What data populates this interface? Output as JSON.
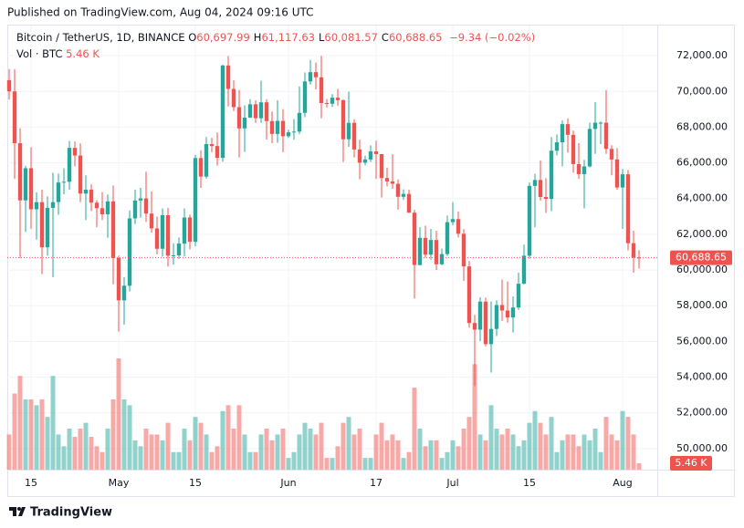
{
  "header": "Published on TradingView.com, Aug 04, 2024 09:16 UTC",
  "footer": "TradingView",
  "chart_data": {
    "type": "candlestick",
    "legend": {
      "symbol": "Bitcoin / TetherUS, 1D, BINANCE",
      "ohlc": [
        {
          "key": "O",
          "value": "60,697.99"
        },
        {
          "key": "H",
          "value": "61,117.63"
        },
        {
          "key": "L",
          "value": "60,081.57"
        },
        {
          "key": "C",
          "value": "60,688.65"
        }
      ],
      "change": "−9.34 (−0.02%)",
      "volume_name": "Vol · BTC",
      "volume_value": "5.46 K"
    },
    "last_price_label": "60,688.65",
    "last_volume_label": "5.46 K",
    "up_color": "#26a69a",
    "down_color": "#ef5350",
    "x": [
      "2024-04-11",
      "2024-04-12",
      "2024-04-13",
      "2024-04-14",
      "2024-04-15",
      "2024-04-16",
      "2024-04-17",
      "2024-04-18",
      "2024-04-19",
      "2024-04-20",
      "2024-04-21",
      "2024-04-22",
      "2024-04-23",
      "2024-04-24",
      "2024-04-25",
      "2024-04-26",
      "2024-04-27",
      "2024-04-28",
      "2024-04-29",
      "2024-04-30",
      "2024-05-01",
      "2024-05-02",
      "2024-05-03",
      "2024-05-04",
      "2024-05-05",
      "2024-05-06",
      "2024-05-07",
      "2024-05-08",
      "2024-05-09",
      "2024-05-10",
      "2024-05-11",
      "2024-05-12",
      "2024-05-13",
      "2024-05-14",
      "2024-05-15",
      "2024-05-16",
      "2024-05-17",
      "2024-05-18",
      "2024-05-19",
      "2024-05-20",
      "2024-05-21",
      "2024-05-22",
      "2024-05-23",
      "2024-05-24",
      "2024-05-25",
      "2024-05-26",
      "2024-05-27",
      "2024-05-28",
      "2024-05-29",
      "2024-05-30",
      "2024-05-31",
      "2024-06-01",
      "2024-06-02",
      "2024-06-03",
      "2024-06-04",
      "2024-06-05",
      "2024-06-06",
      "2024-06-07",
      "2024-06-08",
      "2024-06-09",
      "2024-06-10",
      "2024-06-11",
      "2024-06-12",
      "2024-06-13",
      "2024-06-14",
      "2024-06-15",
      "2024-06-16",
      "2024-06-17",
      "2024-06-18",
      "2024-06-19",
      "2024-06-20",
      "2024-06-21",
      "2024-06-22",
      "2024-06-23",
      "2024-06-24",
      "2024-06-25",
      "2024-06-26",
      "2024-06-27",
      "2024-06-28",
      "2024-06-29",
      "2024-06-30",
      "2024-07-01",
      "2024-07-02",
      "2024-07-03",
      "2024-07-04",
      "2024-07-05",
      "2024-07-06",
      "2024-07-07",
      "2024-07-08",
      "2024-07-09",
      "2024-07-10",
      "2024-07-11",
      "2024-07-12",
      "2024-07-13",
      "2024-07-14",
      "2024-07-15",
      "2024-07-16",
      "2024-07-17",
      "2024-07-18",
      "2024-07-19",
      "2024-07-20",
      "2024-07-21",
      "2024-07-22",
      "2024-07-23",
      "2024-07-24",
      "2024-07-25",
      "2024-07-26",
      "2024-07-27",
      "2024-07-28",
      "2024-07-29",
      "2024-07-30",
      "2024-07-31",
      "2024-08-01",
      "2024-08-02",
      "2024-08-03",
      "2024-08-04"
    ],
    "open": [
      70630,
      70000,
      67100,
      63900,
      65700,
      63400,
      63800,
      61270,
      63480,
      63800,
      64900,
      64940,
      66840,
      66410,
      64280,
      64500,
      63770,
      63460,
      63120,
      63840,
      60670,
      58300,
      59120,
      62890,
      63890,
      64010,
      63160,
      62330,
      61190,
      63070,
      60800,
      60820,
      61480,
      62940,
      61580,
      66270,
      65230,
      67050,
      66940,
      66280,
      71450,
      70140,
      69120,
      67930,
      68530,
      69280,
      68500,
      69390,
      68340,
      67620,
      68350,
      67490,
      67710,
      67750,
      68800,
      70560,
      71080,
      70790,
      69350,
      69310,
      69650,
      69510,
      67320,
      68240,
      66750,
      66010,
      66190,
      66640,
      66490,
      65150,
      64960,
      64830,
      64100,
      64260,
      63210,
      60280,
      61800,
      60860,
      61680,
      60320,
      60890,
      62680,
      62850,
      62030,
      60200,
      57030,
      56660,
      58230,
      55850,
      56700,
      58040,
      57730,
      57340,
      57900,
      59230,
      60800,
      64710,
      65040,
      64090,
      63980,
      66680,
      67150,
      68170,
      67570,
      65930,
      65370,
      65800,
      67900,
      68250,
      68250,
      66780,
      66190,
      64620,
      65360,
      61500,
      60697.99
    ],
    "high": [
      71250,
      71250,
      67930,
      65840,
      66880,
      64350,
      64500,
      64120,
      65450,
      65400,
      65700,
      67230,
      67200,
      67080,
      65300,
      64800,
      63920,
      64370,
      64230,
      64730,
      60800,
      59600,
      63330,
      64500,
      64600,
      65500,
      64400,
      63000,
      63450,
      63470,
      61490,
      61820,
      63450,
      63100,
      66440,
      66700,
      67450,
      67400,
      67700,
      71500,
      71980,
      70620,
      70080,
      69220,
      69560,
      69500,
      70600,
      69560,
      68880,
      69500,
      69010,
      67860,
      68440,
      70280,
      71060,
      71760,
      71620,
      71990,
      69580,
      69850,
      70150,
      69560,
      69990,
      68450,
      67300,
      66400,
      66980,
      67240,
      66490,
      65730,
      66480,
      65070,
      64520,
      64490,
      63370,
      62400,
      62480,
      62300,
      62200,
      61200,
      63050,
      63800,
      63280,
      62290,
      60500,
      57490,
      58480,
      58450,
      58240,
      58300,
      59470,
      59360,
      58520,
      59850,
      61420,
      64900,
      65390,
      66130,
      65150,
      67450,
      67600,
      68370,
      68490,
      67810,
      67100,
      66170,
      68250,
      69400,
      68320,
      70080,
      66990,
      66830,
      65660,
      65600,
      62200,
      61117.63
    ],
    "low": [
      69550,
      65100,
      60660,
      62130,
      62300,
      61700,
      59770,
      60800,
      59600,
      63100,
      64240,
      64500,
      65800,
      63800,
      62800,
      63300,
      62400,
      62800,
      61800,
      59200,
      56550,
      56940,
      58800,
      62570,
      62930,
      62700,
      62100,
      60880,
      60750,
      60190,
      60300,
      60630,
      60760,
      61150,
      61320,
      64600,
      65120,
      66600,
      65850,
      66060,
      69160,
      68900,
      66300,
      66620,
      68520,
      68240,
      68240,
      67300,
      67100,
      67120,
      66600,
      67400,
      67300,
      67620,
      68560,
      70380,
      70110,
      68500,
      69100,
      69130,
      69200,
      66050,
      66900,
      66300,
      65080,
      65870,
      66050,
      65100,
      64060,
      64690,
      64550,
      63380,
      63930,
      63200,
      58400,
      60260,
      60700,
      60570,
      60000,
      60270,
      60790,
      62500,
      61820,
      59400,
      56770,
      53500,
      56020,
      55720,
      54260,
      56300,
      57150,
      57050,
      56500,
      57770,
      59200,
      60630,
      62400,
      63880,
      63200,
      63300,
      66420,
      65800,
      66570,
      65450,
      65100,
      63450,
      65740,
      66500,
      67050,
      66500,
      65300,
      64500,
      62300,
      61100,
      59850,
      60081.57
    ],
    "close": [
      70000,
      67100,
      63900,
      65700,
      63400,
      63800,
      61270,
      63480,
      63800,
      64900,
      64940,
      66840,
      66410,
      64280,
      64500,
      63770,
      63460,
      63120,
      63840,
      60670,
      58300,
      59120,
      62890,
      63890,
      64010,
      63160,
      62330,
      61190,
      63070,
      60800,
      60820,
      61480,
      62940,
      61580,
      66270,
      65230,
      67050,
      66940,
      66280,
      71450,
      70140,
      69120,
      67930,
      68530,
      69280,
      68500,
      69390,
      68340,
      67620,
      68350,
      67490,
      67710,
      67750,
      68800,
      70560,
      71080,
      70790,
      69350,
      69310,
      69650,
      69510,
      67320,
      68240,
      66750,
      66010,
      66190,
      66640,
      66490,
      65150,
      64960,
      64830,
      64100,
      64260,
      63210,
      60280,
      61800,
      60860,
      61680,
      60320,
      60890,
      62680,
      62850,
      62030,
      60200,
      57030,
      56660,
      58230,
      55850,
      56700,
      58040,
      57730,
      57340,
      57900,
      59230,
      60800,
      64710,
      65040,
      64090,
      63980,
      66680,
      67150,
      68170,
      67570,
      65930,
      65370,
      65800,
      67900,
      68250,
      68250,
      66780,
      66190,
      64620,
      65360,
      61500,
      60697.99,
      60688.65
    ],
    "volume": [
      30,
      65,
      80,
      60,
      60,
      55,
      60,
      45,
      80,
      30,
      20,
      35,
      28,
      35,
      40,
      28,
      20,
      15,
      35,
      60,
      95,
      60,
      55,
      25,
      20,
      35,
      30,
      30,
      25,
      40,
      15,
      15,
      35,
      25,
      45,
      40,
      30,
      15,
      20,
      50,
      55,
      35,
      55,
      30,
      15,
      15,
      30,
      35,
      25,
      30,
      35,
      10,
      15,
      30,
      40,
      35,
      30,
      40,
      10,
      10,
      20,
      40,
      45,
      30,
      35,
      10,
      10,
      30,
      40,
      25,
      30,
      25,
      10,
      15,
      70,
      35,
      20,
      25,
      25,
      10,
      15,
      25,
      20,
      35,
      45,
      90,
      30,
      25,
      55,
      35,
      30,
      35,
      30,
      20,
      25,
      40,
      50,
      40,
      30,
      45,
      15,
      25,
      30,
      30,
      20,
      30,
      25,
      35,
      15,
      45,
      30,
      25,
      50,
      45,
      30,
      5.46
    ],
    "ylim": [
      48820,
      73690
    ],
    "yticks": [
      {
        "value": 50000,
        "label": "50,000.00"
      },
      {
        "value": 52000,
        "label": "52,000.00"
      },
      {
        "value": 54000,
        "label": "54,000.00"
      },
      {
        "value": 56000,
        "label": "56,000.00"
      },
      {
        "value": 58000,
        "label": "58,000.00"
      },
      {
        "value": 60000,
        "label": "60,000.00"
      },
      {
        "value": 62000,
        "label": "62,000.00"
      },
      {
        "value": 64000,
        "label": "64,000.00"
      },
      {
        "value": 66000,
        "label": "66,000.00"
      },
      {
        "value": 68000,
        "label": "68,000.00"
      },
      {
        "value": 70000,
        "label": "70,000.00"
      },
      {
        "value": 72000,
        "label": "72,000.00"
      }
    ],
    "xticks": [
      {
        "value": "2024-04-15",
        "label": "15"
      },
      {
        "value": "2024-05-01",
        "label": "May"
      },
      {
        "value": "2024-05-15",
        "label": "15"
      },
      {
        "value": "2024-06-01",
        "label": "Jun"
      },
      {
        "value": "2024-06-17",
        "label": "17"
      },
      {
        "value": "2024-07-01",
        "label": "Jul"
      },
      {
        "value": "2024-07-15",
        "label": "15"
      },
      {
        "value": "2024-08-01",
        "label": "Aug"
      }
    ],
    "grid": true
  }
}
